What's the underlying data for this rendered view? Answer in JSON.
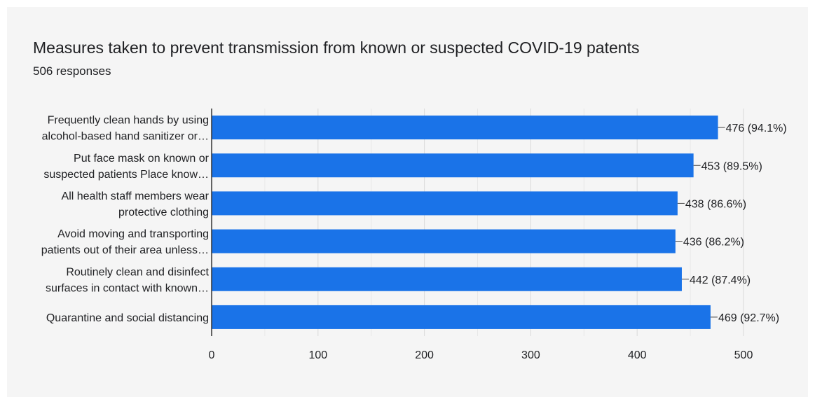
{
  "chart_data": {
    "type": "bar",
    "orientation": "horizontal",
    "title": "Measures taken to prevent transmission from known or suspected COVID-19 patents",
    "subtitle": "506 responses",
    "categories": [
      [
        "Frequently clean hands by using",
        "alcohol-based hand sanitizer or…"
      ],
      [
        "Put face mask on known or",
        "suspected patients Place know…"
      ],
      [
        "All health staff members wear",
        "protective clothing"
      ],
      [
        "Avoid moving and transporting",
        "patients out of their area unless…"
      ],
      [
        "Routinely clean and disinfect",
        "surfaces in contact with known…"
      ],
      [
        "Quarantine and social distancing"
      ]
    ],
    "values": [
      476,
      453,
      438,
      436,
      442,
      469
    ],
    "data_labels": [
      "476 (94.1%)",
      "453 (89.5%)",
      "438 (86.6%)",
      "436 (86.2%)",
      "442 (87.4%)",
      "469 (92.7%)"
    ],
    "xlim": [
      0,
      500
    ],
    "xticks": [
      0,
      100,
      200,
      300,
      400,
      500
    ],
    "grid": true,
    "bar_color": "#1a73e8"
  }
}
